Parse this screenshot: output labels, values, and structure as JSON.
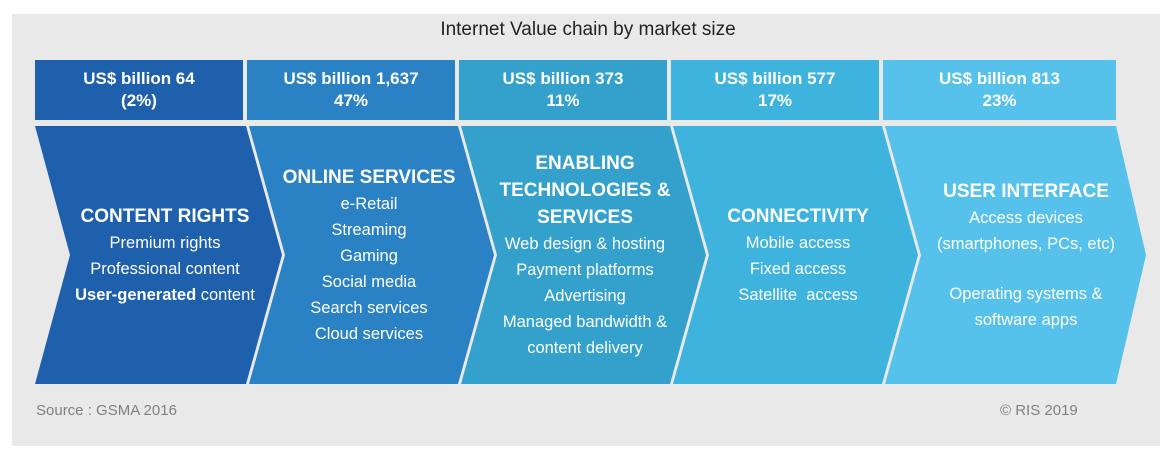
{
  "title": "Internet Value chain by market size",
  "colors": {
    "s1": "#1f60ad",
    "s2": "#2a81c3",
    "s3": "#34a0cc",
    "s4": "#3db3de",
    "s5": "#56c1ea"
  },
  "segments": [
    {
      "value_line": "US$ billion 64",
      "share_line": "(2%)",
      "heading": "CONTENT RIGHTS",
      "items": [
        "Premium rights",
        "Professional content"
      ],
      "highlight_bold": "User-generated",
      "highlight_rest": " content"
    },
    {
      "value_line": "US$ billion 1,637",
      "share_line": "47%",
      "heading": "ONLINE SERVICES",
      "items": [
        "e-Retail",
        "Streaming",
        "Gaming",
        "Social media",
        "Search services",
        "Cloud services"
      ]
    },
    {
      "value_line": "US$ billion 373",
      "share_line": "11%",
      "heading_lines": [
        "ENABLING",
        "TECHNOLOGIES &",
        "SERVICES"
      ],
      "items": [
        "Web design & hosting",
        "Payment platforms",
        "Advertising",
        "Managed bandwidth &",
        "content delivery"
      ]
    },
    {
      "value_line": "US$ billion 577",
      "share_line": "17%",
      "heading": "CONNECTIVITY",
      "items": [
        "Mobile access",
        "Fixed access",
        "Satellite  access"
      ]
    },
    {
      "value_line": "US$ billion 813",
      "share_line": "23%",
      "heading": "USER INTERFACE",
      "items": [
        "Access devices",
        "(smartphones, PCs, etc)"
      ],
      "items_after_gap": [
        "Operating systems &",
        "software apps"
      ]
    }
  ],
  "footer": {
    "source": "Source : GSMA 2016",
    "copyright": "© RIS 2019"
  }
}
